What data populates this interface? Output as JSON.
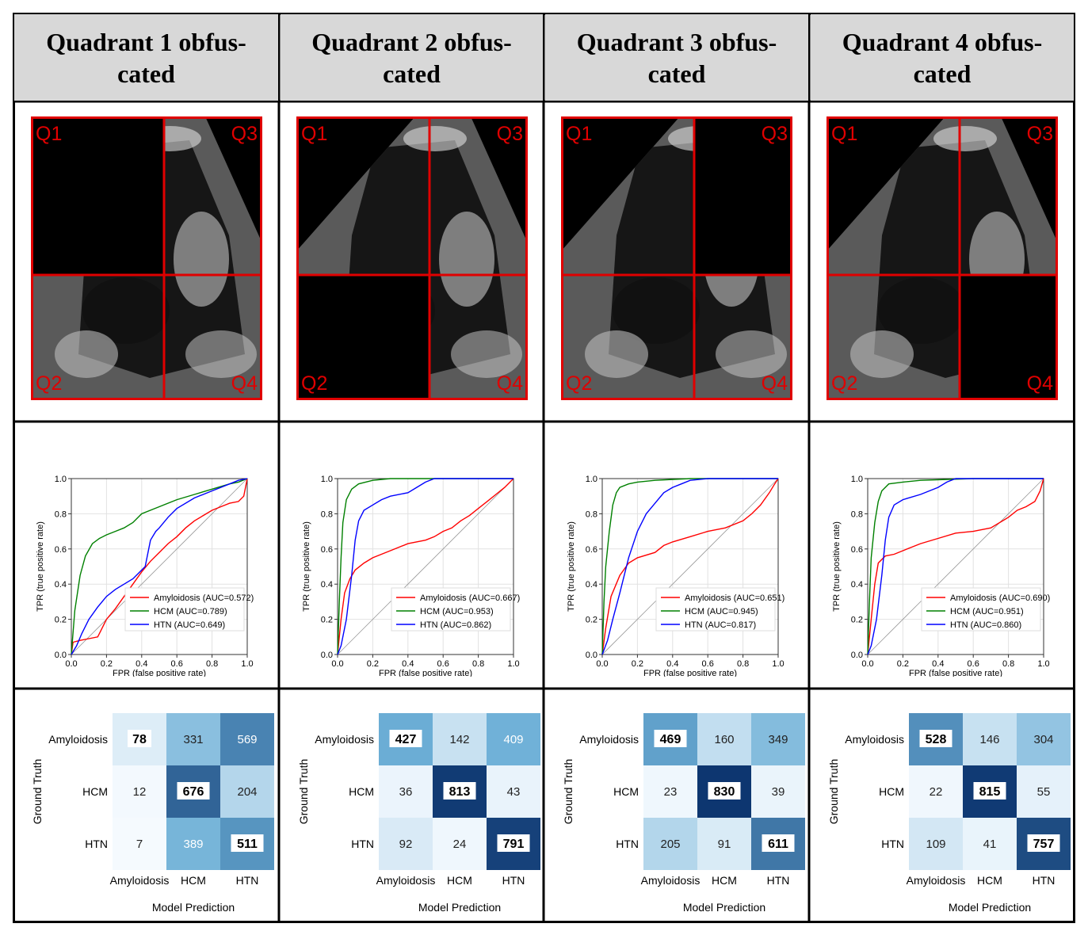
{
  "headers": [
    {
      "line1": "Quadrant 1 obfus-",
      "line2": "cated"
    },
    {
      "line1": "Quadrant 2 obfus-",
      "line2": "cated"
    },
    {
      "line1": "Quadrant 3 obfus-",
      "line2": "cated"
    },
    {
      "line1": "Quadrant 4 obfus-",
      "line2": "cated"
    }
  ],
  "quadrant_labels": [
    "Q1",
    "Q2",
    "Q3",
    "Q4"
  ],
  "obfuscated_quadrant": [
    "Q1",
    "Q2",
    "Q3",
    "Q4"
  ],
  "colors": {
    "amyloidosis": "#ff0000",
    "hcm": "#008000",
    "htn": "#0000ff",
    "quadrant_border": "#e00000",
    "header_bg": "#d8d8d8"
  },
  "chart_data": [
    {
      "type": "line",
      "title": "",
      "xlabel": "FPR (false positive rate)",
      "ylabel": "TPR (true positive rate)",
      "xlim": [
        0,
        1
      ],
      "ylim": [
        0,
        1
      ],
      "ticks": [
        "0.0",
        "0.2",
        "0.4",
        "0.6",
        "0.8",
        "1.0"
      ],
      "series": [
        {
          "name": "Amyloidosis (AUC=0.572)",
          "key": "amyloidosis",
          "x": [
            0,
            0.01,
            0.05,
            0.1,
            0.15,
            0.2,
            0.25,
            0.3,
            0.35,
            0.4,
            0.45,
            0.5,
            0.55,
            0.6,
            0.65,
            0.7,
            0.75,
            0.8,
            0.85,
            0.9,
            0.95,
            0.98,
            1.0
          ],
          "y": [
            0,
            0.07,
            0.08,
            0.09,
            0.1,
            0.2,
            0.26,
            0.33,
            0.4,
            0.47,
            0.53,
            0.58,
            0.63,
            0.67,
            0.72,
            0.76,
            0.79,
            0.82,
            0.84,
            0.86,
            0.87,
            0.9,
            1.0
          ]
        },
        {
          "name": "HCM (AUC=0.789)",
          "key": "hcm",
          "x": [
            0,
            0.02,
            0.05,
            0.08,
            0.12,
            0.16,
            0.2,
            0.25,
            0.3,
            0.35,
            0.4,
            0.5,
            0.6,
            0.7,
            0.8,
            0.9,
            0.95,
            1.0
          ],
          "y": [
            0,
            0.25,
            0.45,
            0.56,
            0.63,
            0.66,
            0.68,
            0.7,
            0.72,
            0.75,
            0.8,
            0.84,
            0.88,
            0.91,
            0.94,
            0.97,
            0.98,
            1.0
          ]
        },
        {
          "name": "HTN (AUC=0.649)",
          "key": "htn",
          "x": [
            0,
            0.03,
            0.06,
            0.1,
            0.15,
            0.2,
            0.25,
            0.3,
            0.35,
            0.42,
            0.45,
            0.48,
            0.5,
            0.55,
            0.6,
            0.7,
            0.8,
            0.9,
            0.95,
            1.0
          ],
          "y": [
            0,
            0.05,
            0.12,
            0.2,
            0.27,
            0.33,
            0.37,
            0.4,
            0.43,
            0.5,
            0.65,
            0.7,
            0.72,
            0.78,
            0.83,
            0.89,
            0.93,
            0.97,
            0.99,
            1.0
          ]
        }
      ]
    },
    {
      "type": "line",
      "title": "",
      "xlabel": "FPR (false positive rate)",
      "ylabel": "TPR (true positive rate)",
      "xlim": [
        0,
        1
      ],
      "ylim": [
        0,
        1
      ],
      "ticks": [
        "0.0",
        "0.2",
        "0.4",
        "0.6",
        "0.8",
        "1.0"
      ],
      "series": [
        {
          "name": "Amyloidosis (AUC=0.667)",
          "key": "amyloidosis",
          "x": [
            0,
            0.02,
            0.04,
            0.07,
            0.1,
            0.15,
            0.2,
            0.3,
            0.4,
            0.5,
            0.55,
            0.6,
            0.65,
            0.7,
            0.75,
            0.8,
            0.85,
            0.9,
            0.95,
            1.0
          ],
          "y": [
            0,
            0.2,
            0.35,
            0.43,
            0.48,
            0.52,
            0.55,
            0.59,
            0.63,
            0.65,
            0.67,
            0.7,
            0.72,
            0.76,
            0.79,
            0.83,
            0.87,
            0.91,
            0.95,
            1.0
          ]
        },
        {
          "name": "HCM (AUC=0.953)",
          "key": "hcm",
          "x": [
            0,
            0.01,
            0.02,
            0.03,
            0.05,
            0.08,
            0.12,
            0.2,
            0.3,
            0.5,
            0.7,
            1.0
          ],
          "y": [
            0,
            0.3,
            0.55,
            0.75,
            0.88,
            0.94,
            0.97,
            0.99,
            1.0,
            1.0,
            1.0,
            1.0
          ]
        },
        {
          "name": "HTN (AUC=0.862)",
          "key": "htn",
          "x": [
            0,
            0.02,
            0.05,
            0.08,
            0.1,
            0.12,
            0.15,
            0.2,
            0.25,
            0.3,
            0.4,
            0.45,
            0.5,
            0.55,
            0.7,
            1.0
          ],
          "y": [
            0,
            0.05,
            0.2,
            0.45,
            0.65,
            0.76,
            0.82,
            0.85,
            0.88,
            0.9,
            0.92,
            0.95,
            0.98,
            1.0,
            1.0,
            1.0
          ]
        }
      ]
    },
    {
      "type": "line",
      "title": "",
      "xlabel": "FPR (false positive rate)",
      "ylabel": "TPR (true positive rate)",
      "xlim": [
        0,
        1
      ],
      "ylim": [
        0,
        1
      ],
      "ticks": [
        "0.0",
        "0.2",
        "0.4",
        "0.6",
        "0.8",
        "1.0"
      ],
      "series": [
        {
          "name": "Amyloidosis (AUC=0.651)",
          "key": "amyloidosis",
          "x": [
            0,
            0.02,
            0.05,
            0.1,
            0.15,
            0.2,
            0.3,
            0.35,
            0.4,
            0.5,
            0.6,
            0.7,
            0.8,
            0.85,
            0.9,
            0.95,
            0.98,
            1.0
          ],
          "y": [
            0,
            0.15,
            0.33,
            0.45,
            0.52,
            0.55,
            0.58,
            0.62,
            0.64,
            0.67,
            0.7,
            0.72,
            0.76,
            0.8,
            0.85,
            0.92,
            0.97,
            1.0
          ]
        },
        {
          "name": "HCM (AUC=0.945)",
          "key": "hcm",
          "x": [
            0,
            0.01,
            0.02,
            0.04,
            0.06,
            0.08,
            0.1,
            0.15,
            0.2,
            0.3,
            0.5,
            1.0
          ],
          "y": [
            0,
            0.3,
            0.5,
            0.7,
            0.85,
            0.92,
            0.95,
            0.97,
            0.98,
            0.99,
            1.0,
            1.0
          ]
        },
        {
          "name": "HTN (AUC=0.817)",
          "key": "htn",
          "x": [
            0,
            0.03,
            0.06,
            0.1,
            0.15,
            0.2,
            0.25,
            0.3,
            0.35,
            0.4,
            0.45,
            0.5,
            0.6,
            0.7,
            1.0
          ],
          "y": [
            0,
            0.08,
            0.2,
            0.35,
            0.55,
            0.7,
            0.8,
            0.86,
            0.92,
            0.95,
            0.97,
            0.99,
            1.0,
            1.0,
            1.0
          ]
        }
      ]
    },
    {
      "type": "line",
      "title": "",
      "xlabel": "FPR (false positive rate)",
      "ylabel": "TPR (true positive rate)",
      "xlim": [
        0,
        1
      ],
      "ylim": [
        0,
        1
      ],
      "ticks": [
        "0.0",
        "0.2",
        "0.4",
        "0.6",
        "0.8",
        "1.0"
      ],
      "series": [
        {
          "name": "Amyloidosis (AUC=0.690)",
          "key": "amyloidosis",
          "x": [
            0,
            0.02,
            0.04,
            0.06,
            0.1,
            0.15,
            0.2,
            0.3,
            0.4,
            0.5,
            0.6,
            0.7,
            0.8,
            0.85,
            0.9,
            0.95,
            0.98,
            1.0
          ],
          "y": [
            0,
            0.2,
            0.4,
            0.52,
            0.56,
            0.57,
            0.59,
            0.63,
            0.66,
            0.69,
            0.7,
            0.72,
            0.78,
            0.82,
            0.84,
            0.87,
            0.93,
            1.0
          ]
        },
        {
          "name": "HCM (AUC=0.951)",
          "key": "hcm",
          "x": [
            0,
            0.01,
            0.02,
            0.04,
            0.06,
            0.08,
            0.12,
            0.2,
            0.3,
            0.6,
            1.0
          ],
          "y": [
            0,
            0.3,
            0.55,
            0.75,
            0.87,
            0.93,
            0.97,
            0.98,
            0.99,
            1.0,
            1.0
          ]
        },
        {
          "name": "HTN (AUC=0.860)",
          "key": "htn",
          "x": [
            0,
            0.02,
            0.05,
            0.08,
            0.1,
            0.12,
            0.15,
            0.2,
            0.3,
            0.4,
            0.45,
            0.5,
            0.6,
            1.0
          ],
          "y": [
            0,
            0.05,
            0.2,
            0.45,
            0.65,
            0.78,
            0.85,
            0.88,
            0.91,
            0.95,
            0.98,
            1.0,
            1.0,
            1.0
          ]
        }
      ]
    },
    {
      "type": "heatmap",
      "xlabel": "Model Prediction",
      "ylabel": "Ground Truth",
      "categories": [
        "Amyloidosis",
        "HCM",
        "HTN"
      ],
      "values": [
        [
          78,
          331,
          569
        ],
        [
          12,
          676,
          204
        ],
        [
          7,
          389,
          511
        ]
      ]
    },
    {
      "type": "heatmap",
      "xlabel": "Model Prediction",
      "ylabel": "Ground Truth",
      "categories": [
        "Amyloidosis",
        "HCM",
        "HTN"
      ],
      "values": [
        [
          427,
          142,
          409
        ],
        [
          36,
          813,
          43
        ],
        [
          92,
          24,
          791
        ]
      ]
    },
    {
      "type": "heatmap",
      "xlabel": "Model Prediction",
      "ylabel": "Ground Truth",
      "categories": [
        "Amyloidosis",
        "HCM",
        "HTN"
      ],
      "values": [
        [
          469,
          160,
          349
        ],
        [
          23,
          830,
          39
        ],
        [
          205,
          91,
          611
        ]
      ]
    },
    {
      "type": "heatmap",
      "xlabel": "Model Prediction",
      "ylabel": "Ground Truth",
      "categories": [
        "Amyloidosis",
        "HCM",
        "HTN"
      ],
      "values": [
        [
          528,
          146,
          304
        ],
        [
          22,
          815,
          55
        ],
        [
          109,
          41,
          757
        ]
      ]
    }
  ]
}
